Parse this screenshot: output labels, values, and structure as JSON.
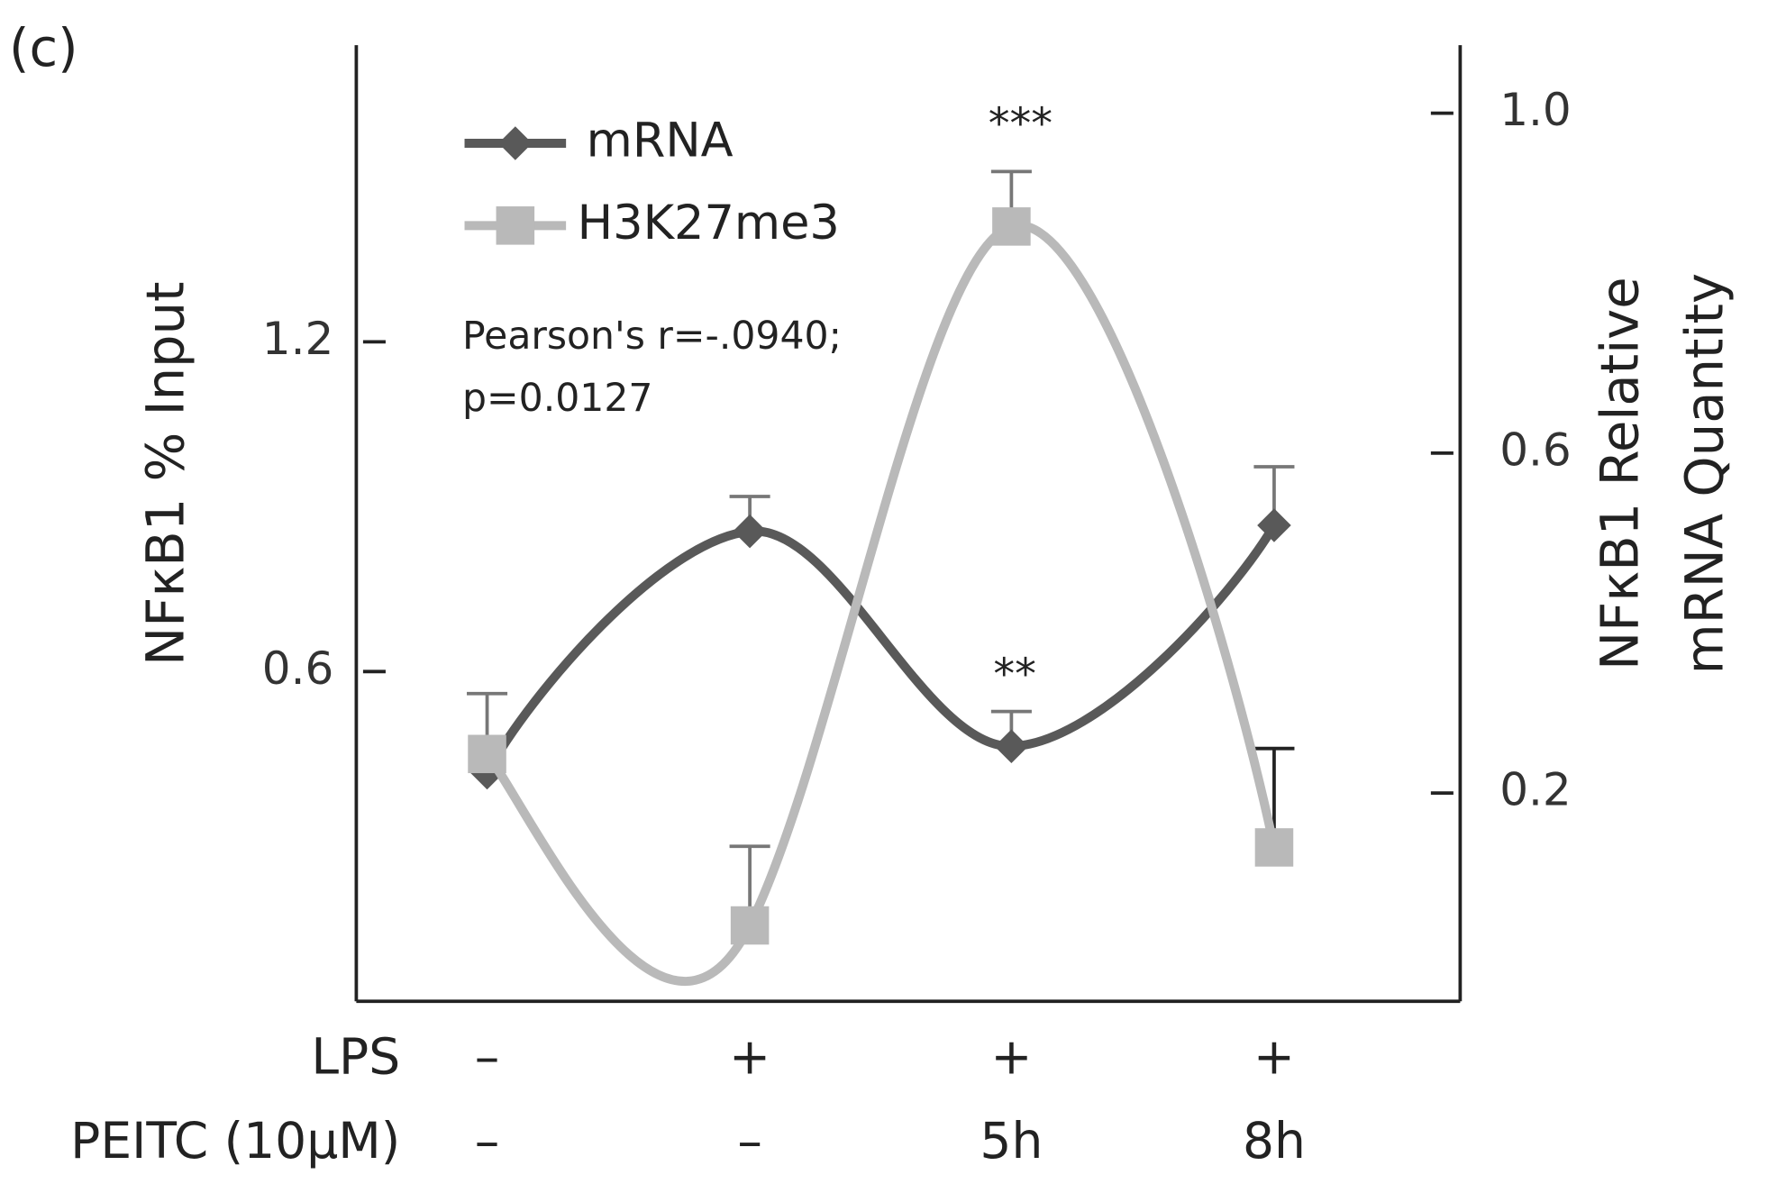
{
  "chart_data": {
    "type": "line",
    "panel_label": "(c)",
    "y_label": "NFκB1 % Input",
    "y2_label": [
      "NFκB1 Relative",
      "mRNA Quantity"
    ],
    "x_label_rows": [
      {
        "label": "LPS",
        "values": [
          "–",
          "+",
          "+",
          "+"
        ]
      },
      {
        "label": "PEITC (10μM)",
        "values": [
          "–",
          "–",
          "5h",
          "8h"
        ]
      }
    ],
    "series": [
      {
        "name": "mRNA",
        "color": "#595959",
        "marker": "diamond",
        "axis": "y2",
        "values": [
          0.224,
          0.508,
          0.255,
          0.515
        ],
        "errors": [
          0.093,
          0.041,
          0.041,
          0.069
        ]
      },
      {
        "name": "H3K27me3",
        "color": "#b9b9b9",
        "marker": "square",
        "axis": "y",
        "values": [
          0.45,
          0.138,
          1.41,
          0.28
        ],
        "errors": [
          null,
          0.144,
          0.1,
          0.18
        ]
      }
    ],
    "annotations": [
      "***",
      "**"
    ],
    "stats": [
      "Pearson's r=-.0940;",
      "p=0.0127"
    ],
    "ylim": [
      0,
      1.74
    ],
    "yticks": [
      0.6,
      1.2
    ],
    "y2lim": [
      -0.045,
      1.08
    ],
    "y2ticks": [
      0.2,
      0.6,
      {
        "value": 1,
        "label": "1.0"
      }
    ]
  }
}
